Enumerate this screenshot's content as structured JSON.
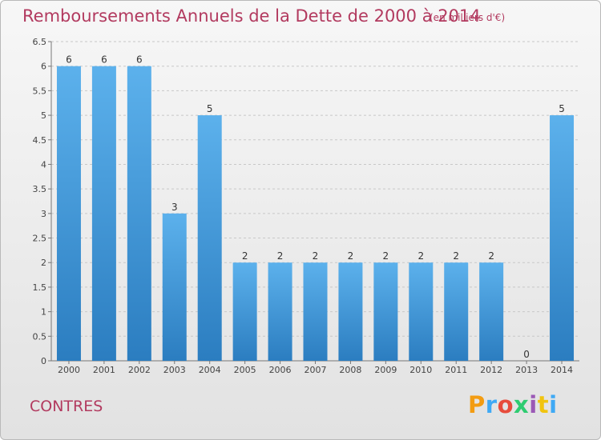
{
  "header": {
    "title": "Remboursements Annuels de la Dette de 2000 à 2014",
    "unit": "(en milliers d'€)"
  },
  "footer": {
    "place": "CONTRES",
    "brand": "Proxiti",
    "brand_colors": [
      "#f39c12",
      "#3fa9f5",
      "#e74c3c",
      "#2ecc71",
      "#9b59b6",
      "#f1c40f",
      "#3fa9f5"
    ]
  },
  "colors": {
    "title": "#b23a5f",
    "bar_light": "#5cb1ec",
    "bar_dark": "#2b7dc0",
    "grid": "#c8c8c8"
  },
  "chart_data": {
    "type": "bar",
    "categories": [
      "2000",
      "2001",
      "2002",
      "2003",
      "2004",
      "2005",
      "2006",
      "2007",
      "2008",
      "2009",
      "2010",
      "2011",
      "2012",
      "2013",
      "2014"
    ],
    "values": [
      6,
      6,
      6,
      3,
      5,
      2,
      2,
      2,
      2,
      2,
      2,
      2,
      2,
      0,
      5
    ],
    "data_labels": [
      "6",
      "6",
      "6",
      "3",
      "5",
      "2",
      "2",
      "2",
      "2",
      "2",
      "2",
      "2",
      "2",
      "0",
      "5"
    ],
    "ylim": [
      0,
      6.5
    ],
    "yticks": [
      0,
      0.5,
      1,
      1.5,
      2,
      2.5,
      3,
      3.5,
      4,
      4.5,
      5,
      5.5,
      6,
      6.5
    ],
    "ytick_labels": [
      "0",
      "0.5",
      "1",
      "1.5",
      "2",
      "2.5",
      "3",
      "3.5",
      "4",
      "4.5",
      "5",
      "5.5",
      "6",
      "6.5"
    ],
    "grid": "horizontal dashed",
    "xlabel": "",
    "ylabel": ""
  }
}
